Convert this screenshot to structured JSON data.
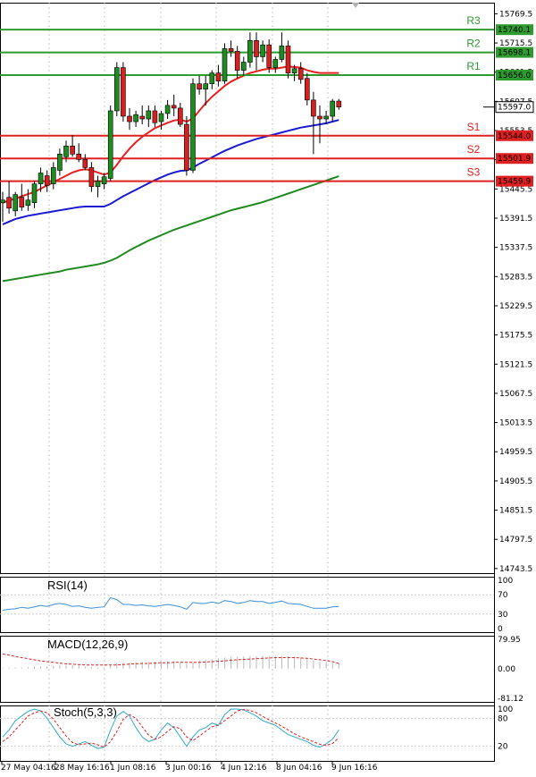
{
  "chart_data": {
    "type": "candlestick",
    "main": {
      "y_ticks": [
        "15769.5",
        "15715.5",
        "15661.5",
        "15607.5",
        "15553.5",
        "15499.5",
        "15445.5",
        "15391.5",
        "15337.5",
        "15283.5",
        "15229.5",
        "15175.5",
        "15121.5",
        "15067.5",
        "15013.5",
        "14959.5",
        "14905.5",
        "14851.5",
        "14797.5",
        "14743.5"
      ],
      "ylim": [
        14735,
        15790
      ],
      "current_price": "15597.0",
      "levels": [
        {
          "name": "R3",
          "value": 15740.1,
          "label": "15740.1",
          "color": "#2e9b2e"
        },
        {
          "name": "R2",
          "value": 15698.1,
          "label": "15698.1",
          "color": "#2e9b2e"
        },
        {
          "name": "R1",
          "value": 15656.0,
          "label": "15656.0",
          "color": "#2e9b2e"
        },
        {
          "name": "S1",
          "value": 15544.0,
          "label": "15544.0",
          "color": "#e02020"
        },
        {
          "name": "S2",
          "value": 15501.9,
          "label": "15501.9",
          "color": "#e02020"
        },
        {
          "name": "S3",
          "value": 15459.9,
          "label": "15459.9",
          "color": "#e02020"
        }
      ],
      "candles": [
        {
          "o": 15420,
          "h": 15440,
          "l": 15385,
          "c": 15425
        },
        {
          "o": 15430,
          "h": 15460,
          "l": 15400,
          "c": 15410
        },
        {
          "o": 15405,
          "h": 15440,
          "l": 15395,
          "c": 15435
        },
        {
          "o": 15430,
          "h": 15455,
          "l": 15405,
          "c": 15412
        },
        {
          "o": 15415,
          "h": 15445,
          "l": 15405,
          "c": 15425
        },
        {
          "o": 15420,
          "h": 15460,
          "l": 15410,
          "c": 15455
        },
        {
          "o": 15455,
          "h": 15485,
          "l": 15440,
          "c": 15475
        },
        {
          "o": 15470,
          "h": 15480,
          "l": 15440,
          "c": 15452
        },
        {
          "o": 15455,
          "h": 15495,
          "l": 15445,
          "c": 15485
        },
        {
          "o": 15480,
          "h": 15520,
          "l": 15470,
          "c": 15510
        },
        {
          "o": 15505,
          "h": 15535,
          "l": 15495,
          "c": 15525
        },
        {
          "o": 15525,
          "h": 15545,
          "l": 15505,
          "c": 15510
        },
        {
          "o": 15510,
          "h": 15530,
          "l": 15495,
          "c": 15500
        },
        {
          "o": 15500,
          "h": 15510,
          "l": 15480,
          "c": 15485
        },
        {
          "o": 15485,
          "h": 15495,
          "l": 15440,
          "c": 15450
        },
        {
          "o": 15450,
          "h": 15470,
          "l": 15430,
          "c": 15460
        },
        {
          "o": 15455,
          "h": 15475,
          "l": 15445,
          "c": 15468
        },
        {
          "o": 15465,
          "h": 15600,
          "l": 15460,
          "c": 15590
        },
        {
          "o": 15590,
          "h": 15680,
          "l": 15580,
          "c": 15670
        },
        {
          "o": 15670,
          "h": 15680,
          "l": 15570,
          "c": 15580
        },
        {
          "o": 15580,
          "h": 15595,
          "l": 15555,
          "c": 15570
        },
        {
          "o": 15570,
          "h": 15590,
          "l": 15560,
          "c": 15583
        },
        {
          "o": 15580,
          "h": 15600,
          "l": 15565,
          "c": 15575
        },
        {
          "o": 15575,
          "h": 15600,
          "l": 15560,
          "c": 15590
        },
        {
          "o": 15590,
          "h": 15600,
          "l": 15560,
          "c": 15568
        },
        {
          "o": 15570,
          "h": 15590,
          "l": 15555,
          "c": 15585
        },
        {
          "o": 15585,
          "h": 15610,
          "l": 15575,
          "c": 15600
        },
        {
          "o": 15600,
          "h": 15620,
          "l": 15580,
          "c": 15595
        },
        {
          "o": 15595,
          "h": 15605,
          "l": 15560,
          "c": 15565
        },
        {
          "o": 15565,
          "h": 15580,
          "l": 15470,
          "c": 15480
        },
        {
          "o": 15480,
          "h": 15650,
          "l": 15475,
          "c": 15640
        },
        {
          "o": 15640,
          "h": 15655,
          "l": 15620,
          "c": 15630
        },
        {
          "o": 15630,
          "h": 15655,
          "l": 15600,
          "c": 15640
        },
        {
          "o": 15640,
          "h": 15665,
          "l": 15630,
          "c": 15660
        },
        {
          "o": 15660,
          "h": 15675,
          "l": 15635,
          "c": 15645
        },
        {
          "o": 15645,
          "h": 15715,
          "l": 15640,
          "c": 15705
        },
        {
          "o": 15705,
          "h": 15720,
          "l": 15690,
          "c": 15700
        },
        {
          "o": 15700,
          "h": 15710,
          "l": 15650,
          "c": 15665
        },
        {
          "o": 15665,
          "h": 15690,
          "l": 15655,
          "c": 15680
        },
        {
          "o": 15680,
          "h": 15735,
          "l": 15670,
          "c": 15720
        },
        {
          "o": 15720,
          "h": 15735,
          "l": 15665,
          "c": 15690
        },
        {
          "o": 15690,
          "h": 15720,
          "l": 15680,
          "c": 15712
        },
        {
          "o": 15712,
          "h": 15722,
          "l": 15660,
          "c": 15670
        },
        {
          "o": 15670,
          "h": 15690,
          "l": 15660,
          "c": 15685
        },
        {
          "o": 15685,
          "h": 15735,
          "l": 15680,
          "c": 15710
        },
        {
          "o": 15710,
          "h": 15720,
          "l": 15650,
          "c": 15660
        },
        {
          "o": 15660,
          "h": 15675,
          "l": 15645,
          "c": 15668
        },
        {
          "o": 15668,
          "h": 15680,
          "l": 15640,
          "c": 15648
        },
        {
          "o": 15650,
          "h": 15660,
          "l": 15600,
          "c": 15610
        },
        {
          "o": 15610,
          "h": 15625,
          "l": 15510,
          "c": 15580
        },
        {
          "o": 15580,
          "h": 15600,
          "l": 15530,
          "c": 15575
        },
        {
          "o": 15575,
          "h": 15590,
          "l": 15565,
          "c": 15580
        },
        {
          "o": 15580,
          "h": 15612,
          "l": 15570,
          "c": 15608
        },
        {
          "o": 15608,
          "h": 15612,
          "l": 15592,
          "c": 15597
        }
      ],
      "ma_red": [
        15420,
        15424,
        15428,
        15432,
        15436,
        15440,
        15446,
        15452,
        15458,
        15464,
        15470,
        15476,
        15480,
        15482,
        15480,
        15476,
        15472,
        15476,
        15490,
        15506,
        15520,
        15532,
        15542,
        15550,
        15558,
        15563,
        15568,
        15572,
        15574,
        15570,
        15576,
        15590,
        15604,
        15616,
        15626,
        15636,
        15644,
        15650,
        15655,
        15660,
        15663,
        15666,
        15668,
        15668,
        15670,
        15672,
        15671,
        15670,
        15665,
        15662,
        15660,
        15660,
        15660,
        15660
      ],
      "ma_blue": [
        15380,
        15385,
        15390,
        15393,
        15396,
        15398,
        15400,
        15402,
        15404,
        15406,
        15408,
        15410,
        15412,
        15413,
        15413,
        15413,
        15413,
        15418,
        15425,
        15432,
        15438,
        15444,
        15450,
        15456,
        15462,
        15467,
        15472,
        15476,
        15479,
        15480,
        15485,
        15492,
        15498,
        15504,
        15510,
        15516,
        15521,
        15526,
        15530,
        15534,
        15538,
        15541,
        15544,
        15547,
        15550,
        15553,
        15556,
        15559,
        15561,
        15563,
        15565,
        15567,
        15570,
        15573
      ],
      "ma_green": [
        15275,
        15277,
        15279,
        15281,
        15283,
        15285,
        15287,
        15289,
        15291,
        15293,
        15296,
        15298,
        15300,
        15302,
        15304,
        15306,
        15309,
        15313,
        15318,
        15325,
        15332,
        15338,
        15344,
        15350,
        15355,
        15360,
        15365,
        15370,
        15374,
        15378,
        15382,
        15386,
        15390,
        15394,
        15398,
        15402,
        15406,
        15409,
        15412,
        15415,
        15418,
        15421,
        15425,
        15429,
        15433,
        15437,
        15441,
        15445,
        15449,
        15453,
        15457,
        15461,
        15465,
        15469
      ]
    },
    "rsi": {
      "name": "RSI(14)",
      "y_ticks": [
        "100",
        "70",
        "30",
        "0"
      ],
      "values": [
        38,
        40,
        41,
        44,
        42,
        45,
        48,
        46,
        50,
        52,
        50,
        46,
        47,
        44,
        42,
        44,
        45,
        64,
        60,
        50,
        50,
        48,
        49,
        47,
        46,
        48,
        50,
        48,
        45,
        40,
        54,
        52,
        52,
        55,
        52,
        58,
        56,
        52,
        54,
        58,
        56,
        56,
        52,
        54,
        57,
        52,
        51,
        50,
        46,
        42,
        42,
        42,
        45,
        46
      ]
    },
    "macd": {
      "name": "MACD(12,26,9)",
      "y_ticks": [
        "79.95",
        "0.00",
        "-81.12"
      ],
      "ylim": [
        -81.12,
        79.95
      ],
      "hist": [
        2,
        2,
        3,
        3,
        4,
        5,
        6,
        6,
        7,
        8,
        9,
        9,
        8,
        6,
        4,
        3,
        3,
        8,
        14,
        16,
        17,
        18,
        18,
        19,
        19,
        19,
        20,
        20,
        18,
        14,
        18,
        22,
        24,
        26,
        28,
        30,
        32,
        32,
        33,
        34,
        34,
        35,
        34,
        34,
        34,
        33,
        32,
        30,
        27,
        23,
        20,
        18,
        16,
        15
      ],
      "signal": [
        40,
        37,
        33,
        30,
        27,
        24,
        21,
        19,
        17,
        15,
        13,
        12,
        11,
        10,
        10,
        10,
        10,
        10,
        10,
        11,
        12,
        13,
        14,
        14,
        15,
        16,
        16,
        17,
        17,
        17,
        17,
        17,
        18,
        19,
        20,
        21,
        23,
        24,
        25,
        26,
        27,
        28,
        29,
        30,
        30,
        30,
        30,
        29,
        28,
        26,
        24,
        22,
        19,
        14
      ]
    },
    "stoch": {
      "name": "Stoch(5,3,3)",
      "y_ticks": [
        "100",
        "80",
        "20"
      ],
      "k": [
        40,
        55,
        75,
        85,
        95,
        100,
        96,
        80,
        60,
        40,
        25,
        20,
        25,
        30,
        22,
        15,
        18,
        55,
        85,
        95,
        85,
        60,
        40,
        30,
        35,
        55,
        70,
        60,
        40,
        20,
        40,
        55,
        60,
        70,
        65,
        88,
        100,
        100,
        98,
        92,
        85,
        75,
        70,
        65,
        55,
        45,
        40,
        35,
        30,
        22,
        18,
        25,
        35,
        55
      ],
      "d": [
        30,
        40,
        55,
        70,
        85,
        92,
        96,
        92,
        78,
        60,
        42,
        28,
        23,
        25,
        27,
        23,
        18,
        30,
        52,
        78,
        88,
        80,
        62,
        44,
        35,
        40,
        52,
        62,
        58,
        40,
        32,
        42,
        52,
        62,
        65,
        75,
        85,
        96,
        99,
        97,
        92,
        84,
        77,
        70,
        63,
        55,
        47,
        40,
        35,
        30,
        24,
        22,
        26,
        38
      ]
    },
    "x_ticks": [
      "27 May 04:16",
      "28 May 16:16",
      "1 Jun 08:16",
      "3 Jun 00:16",
      "4 Jun 12:16",
      "8 Jun 04:16",
      "9 Jun 16:16"
    ]
  },
  "colors": {
    "bull_candle": "#1e8c1e",
    "bear_candle": "#d62020",
    "ma_red": "#e82020",
    "ma_blue": "#1a1ad0",
    "ma_green": "#1f8a1f",
    "rsi_line": "#3f8fd8",
    "macd_signal": "#e02020",
    "stoch_k": "#33aacc",
    "stoch_d": "#e02020",
    "price_tag_bg": "#ffffff"
  }
}
